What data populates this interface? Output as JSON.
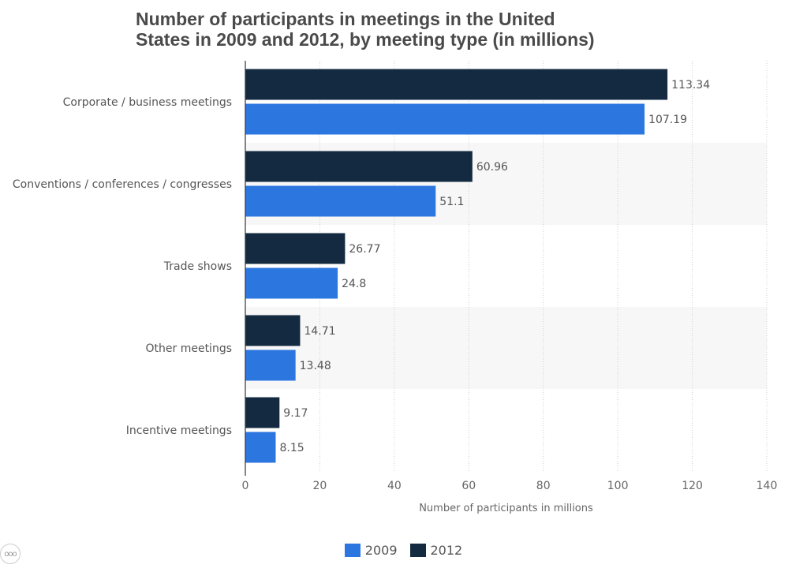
{
  "chart_data": {
    "type": "bar",
    "orientation": "horizontal",
    "title_line1": "Number of participants in meetings in the United",
    "title_line2": "States in 2009 and 2012, by meeting type (in millions)",
    "xlabel": "Number of participants in millions",
    "ylabel": "",
    "xlim": [
      0,
      140
    ],
    "ticks": [
      0,
      20,
      40,
      60,
      80,
      100,
      120,
      140
    ],
    "tick_labels": [
      "0",
      "20",
      "40",
      "60",
      "80",
      "100",
      "120",
      "140"
    ],
    "categories": [
      "Corporate / business meetings",
      "Conventions / conferences / congresses",
      "Trade shows",
      "Other meetings",
      "Incentive meetings"
    ],
    "series": [
      {
        "name": "2012",
        "color": "#132a40",
        "values": [
          113.34,
          60.96,
          26.77,
          14.71,
          9.17
        ],
        "labels": [
          "113.34",
          "60.96",
          "26.77",
          "14.71",
          "9.17"
        ]
      },
      {
        "name": "2009",
        "color": "#2b76df",
        "values": [
          107.19,
          51.1,
          24.8,
          13.48,
          8.15
        ],
        "labels": [
          "107.19",
          "51.1",
          "24.8",
          "13.48",
          "8.15"
        ]
      }
    ],
    "legend": [
      {
        "name": "2009",
        "color": "#2b76df"
      },
      {
        "name": "2012",
        "color": "#132a40"
      }
    ],
    "legend_position": "bottom",
    "grid": true
  },
  "ui": {
    "menu_icon": "ellipsis-icon",
    "menu_glyph": "ooo"
  }
}
